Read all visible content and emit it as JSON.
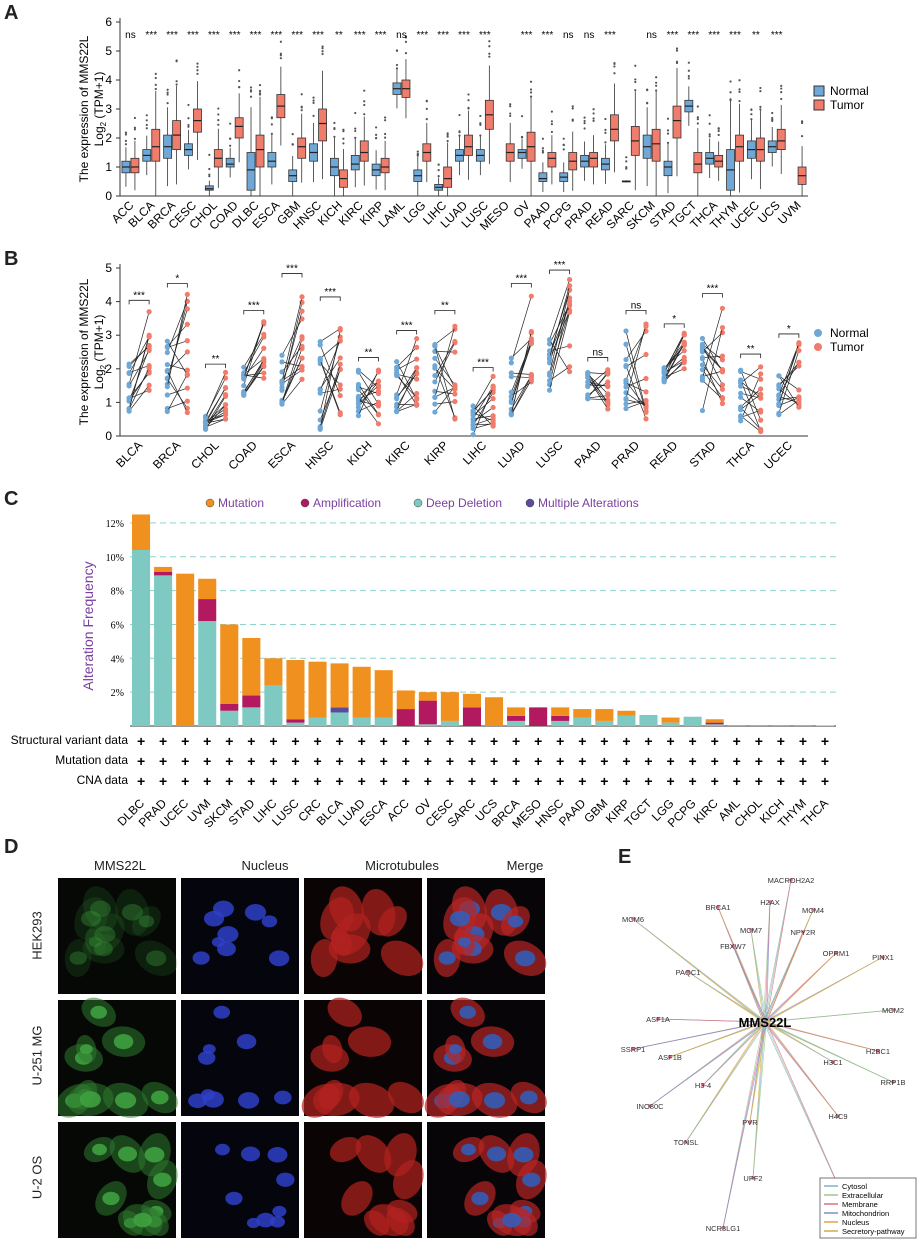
{
  "panels": {
    "a": "A",
    "b": "B",
    "c": "C",
    "d": "D",
    "e": "E"
  },
  "colors": {
    "normal": "#6fa8d6",
    "tumor": "#f07c6c",
    "mutation": "#f0901e",
    "amplification": "#b2195e",
    "deep_deletion": "#7ec9c1",
    "multiple": "#5b4b9b",
    "alt_ylabel": "#7a3fa0",
    "legend_text_c": "#7a3fa0",
    "gridline_c": "#8fd3cc"
  },
  "chart_data": [
    {
      "id": "A",
      "type": "box",
      "ylabel_line1": "The expression of MMS22L",
      "ylabel_line2": "Log",
      "ylabel_sub": "2",
      "ylabel_line3": " (TPM+1)",
      "ylim": [
        0,
        6
      ],
      "yticks": [
        "0",
        "1",
        "2",
        "3",
        "4",
        "5",
        "6"
      ],
      "legend": [
        "Normal",
        "Tumor"
      ],
      "categories": [
        "ACC",
        "BLCA",
        "BRCA",
        "CESC",
        "CHOL",
        "COAD",
        "DLBC",
        "ESCA",
        "GBM",
        "HNSC",
        "KICH",
        "KIRC",
        "KIRP",
        "LAML",
        "LGG",
        "LIHC",
        "LUAD",
        "LUSC",
        "MESO",
        "OV",
        "PAAD",
        "PCPG",
        "PRAD",
        "READ",
        "SARC",
        "SKCM",
        "STAD",
        "TGCT",
        "THCA",
        "THYM",
        "UCEC",
        "UCS",
        "UVM"
      ],
      "significance": [
        "ns",
        "***",
        "***",
        "***",
        "***",
        "***",
        "***",
        "***",
        "***",
        "***",
        "**",
        "***",
        "***",
        "ns",
        "***",
        "***",
        "***",
        "***",
        "",
        "***",
        "***",
        "ns",
        "ns",
        "***",
        "",
        "ns",
        "***",
        "***",
        "***",
        "***",
        "**",
        "***",
        ""
      ],
      "normal": [
        [
          0.8,
          1.0,
          1.2
        ],
        [
          1.2,
          1.4,
          1.6
        ],
        [
          1.3,
          1.7,
          2.1
        ],
        [
          1.4,
          1.6,
          1.8
        ],
        [
          0.2,
          0.25,
          0.35
        ],
        [
          1.0,
          1.1,
          1.3
        ],
        [
          0.2,
          0.9,
          1.5
        ],
        [
          1.0,
          1.2,
          1.5
        ],
        [
          0.5,
          0.7,
          0.9
        ],
        [
          1.2,
          1.5,
          1.8
        ],
        [
          0.7,
          1.0,
          1.3
        ],
        [
          0.9,
          1.1,
          1.4
        ],
        [
          0.7,
          0.9,
          1.1
        ],
        [
          3.5,
          3.7,
          3.9
        ],
        [
          0.5,
          0.7,
          0.9
        ],
        [
          0.2,
          0.3,
          0.4
        ],
        [
          1.2,
          1.4,
          1.6
        ],
        [
          1.2,
          1.4,
          1.6
        ],
        null,
        [
          1.3,
          1.5,
          1.6
        ],
        [
          0.5,
          0.6,
          0.8
        ],
        [
          0.5,
          0.65,
          0.8
        ],
        [
          1.0,
          1.2,
          1.4
        ],
        [
          0.9,
          1.1,
          1.3
        ],
        [
          0.5,
          0.5,
          0.52
        ],
        [
          1.3,
          1.7,
          2.1
        ],
        [
          0.7,
          1.0,
          1.2
        ],
        [
          2.9,
          3.1,
          3.3
        ],
        [
          1.1,
          1.3,
          1.5
        ],
        [
          0.2,
          0.9,
          1.6
        ],
        [
          1.3,
          1.6,
          1.9
        ],
        [
          1.5,
          1.7,
          1.9
        ],
        null
      ],
      "tumor": [
        [
          0.8,
          1.0,
          1.3
        ],
        [
          1.2,
          1.7,
          2.3
        ],
        [
          1.6,
          2.1,
          2.6
        ],
        [
          2.2,
          2.6,
          3.0
        ],
        [
          1.0,
          1.3,
          1.6
        ],
        [
          2.0,
          2.4,
          2.7
        ],
        [
          1.0,
          1.6,
          2.1
        ],
        [
          2.7,
          3.1,
          3.5
        ],
        [
          1.3,
          1.7,
          2.0
        ],
        [
          1.9,
          2.5,
          3.0
        ],
        [
          0.3,
          0.6,
          0.9
        ],
        [
          1.2,
          1.5,
          1.9
        ],
        [
          0.8,
          1.0,
          1.3
        ],
        [
          3.4,
          3.7,
          4.0
        ],
        [
          1.2,
          1.5,
          1.8
        ],
        [
          0.3,
          0.6,
          1.0
        ],
        [
          1.4,
          1.7,
          2.1
        ],
        [
          2.3,
          2.8,
          3.3
        ],
        [
          1.2,
          1.5,
          1.8
        ],
        [
          1.2,
          1.7,
          2.2
        ],
        [
          1.0,
          1.3,
          1.5
        ],
        [
          0.9,
          1.2,
          1.5
        ],
        [
          1.0,
          1.3,
          1.5
        ],
        [
          1.9,
          2.3,
          2.8
        ],
        [
          1.4,
          1.9,
          2.4
        ],
        [
          1.2,
          1.8,
          2.3
        ],
        [
          2.0,
          2.6,
          3.1
        ],
        [
          0.8,
          1.1,
          1.5
        ],
        [
          1.0,
          1.2,
          1.4
        ],
        [
          1.2,
          1.7,
          2.1
        ],
        [
          1.2,
          1.6,
          2.0
        ],
        [
          1.6,
          1.9,
          2.3
        ],
        [
          0.4,
          0.7,
          1.0
        ]
      ]
    },
    {
      "id": "B",
      "type": "paired-scatter",
      "ylabel_line1": "The expression of MMS22L",
      "ylabel_line2": "Log",
      "ylabel_sub": "2",
      "ylabel_line3": " (TPM+1)",
      "ylim": [
        0,
        5
      ],
      "yticks": [
        "0",
        "1",
        "2",
        "3",
        "4",
        "5"
      ],
      "legend": [
        "Normal",
        "Tumor"
      ],
      "categories": [
        "BLCA",
        "BRCA",
        "CHOL",
        "COAD",
        "ESCA",
        "HNSC",
        "KICH",
        "KIRC",
        "KIRP",
        "LIHC",
        "LUAD",
        "LUSC",
        "PAAD",
        "PRAD",
        "READ",
        "STAD",
        "THCA",
        "UCEC"
      ],
      "significance": [
        "***",
        "*",
        "**",
        "***",
        "***",
        "***",
        "**",
        "***",
        "**",
        "***",
        "***",
        "***",
        "ns",
        "ns",
        "*",
        "***",
        "**",
        "*"
      ],
      "normal_range": [
        [
          0.6,
          2.2
        ],
        [
          0.6,
          3.1
        ],
        [
          0.2,
          0.6
        ],
        [
          1.2,
          2.2
        ],
        [
          0.8,
          2.6
        ],
        [
          0.2,
          2.9
        ],
        [
          0.6,
          2.1
        ],
        [
          0.7,
          2.5
        ],
        [
          0.4,
          2.8
        ],
        [
          0,
          0.9
        ],
        [
          0.5,
          2.5
        ],
        [
          1.2,
          2.9
        ],
        [
          1.0,
          2.1
        ],
        [
          0.5,
          3.2
        ],
        [
          1.6,
          2.1
        ],
        [
          0.5,
          3.1
        ],
        [
          0.4,
          2.0
        ],
        [
          0.6,
          1.9
        ]
      ],
      "tumor_range": [
        [
          0.9,
          3.8
        ],
        [
          0.5,
          4.3
        ],
        [
          0.5,
          1.9
        ],
        [
          1.6,
          3.5
        ],
        [
          1.2,
          4.6
        ],
        [
          0.4,
          3.9
        ],
        [
          0.2,
          2.0
        ],
        [
          0.9,
          2.9
        ],
        [
          0.5,
          3.5
        ],
        [
          0.1,
          1.8
        ],
        [
          1.3,
          4.3
        ],
        [
          1.9,
          4.7
        ],
        [
          0.8,
          2.1
        ],
        [
          0.5,
          3.5
        ],
        [
          1.8,
          3.1
        ],
        [
          0.5,
          4.0
        ],
        [
          0.1,
          2.2
        ],
        [
          0.6,
          2.8
        ]
      ]
    },
    {
      "id": "C",
      "type": "bar",
      "ylabel": "Alteration Frequency",
      "ylim": [
        0,
        13
      ],
      "yticks": [
        "2%",
        "4%",
        "6%",
        "8%",
        "10%",
        "12%"
      ],
      "legend": [
        "Mutation",
        "Amplification",
        "Deep Deletion",
        "Multiple Alterations"
      ],
      "row_labels": [
        "Structural variant data",
        "Mutation data",
        "CNA data"
      ],
      "categories": [
        "DLBC",
        "PRAD",
        "UCEC",
        "UVM",
        "SKCM",
        "STAD",
        "LIHC",
        "LUSC",
        "CRC",
        "BLCA",
        "LUAD",
        "ESCA",
        "ACC",
        "OV",
        "CESC",
        "SARC",
        "UCS",
        "BRCA",
        "MESO",
        "HNSC",
        "PAAD",
        "GBM",
        "KIRP",
        "TGCT",
        "LGG",
        "PCPG",
        "KIRC",
        "AML",
        "CHOL",
        "KICH",
        "THYM",
        "THCA"
      ],
      "series": [
        {
          "name": "Deep Deletion",
          "values": [
            10.4,
            8.9,
            0,
            6.2,
            0.9,
            1.1,
            2.4,
            0.2,
            0.5,
            0.8,
            0.5,
            0.5,
            0,
            0.1,
            0.3,
            0,
            0,
            0.3,
            0,
            0.3,
            0.5,
            0.3,
            0.6,
            0.65,
            0.2,
            0.55,
            0.1,
            0,
            0,
            0,
            0,
            0
          ]
        },
        {
          "name": "Multiple Alterations",
          "values": [
            0,
            0,
            0,
            0,
            0,
            0,
            0,
            0,
            0,
            0.3,
            0,
            0,
            0,
            0,
            0,
            0,
            0,
            0,
            0,
            0,
            0,
            0,
            0,
            0,
            0,
            0,
            0,
            0,
            0,
            0,
            0,
            0
          ]
        },
        {
          "name": "Amplification",
          "values": [
            0,
            0.2,
            0,
            1.3,
            0.4,
            0.7,
            0,
            0.2,
            0,
            0,
            0,
            0,
            1.0,
            1.4,
            0,
            1.1,
            0,
            0.3,
            1.1,
            0.3,
            0,
            0,
            0,
            0,
            0,
            0,
            0.1,
            0,
            0,
            0,
            0,
            0
          ]
        },
        {
          "name": "Mutation",
          "values": [
            2.1,
            0.3,
            9.0,
            1.2,
            4.7,
            3.4,
            1.6,
            3.5,
            3.3,
            2.6,
            3.0,
            2.8,
            1.1,
            0.5,
            1.7,
            0.8,
            1.7,
            0.5,
            0,
            0.5,
            0.5,
            0.7,
            0.3,
            0,
            0.3,
            0,
            0.2,
            0.05,
            0.05,
            0.05,
            0.05,
            0.03
          ]
        }
      ]
    }
  ],
  "panel_d": {
    "columns": [
      "MMS22L",
      "Nucleus",
      "Microtubules",
      "Merge"
    ],
    "rows": [
      "HEK293",
      "U-251 MG",
      "U-2 OS"
    ]
  },
  "panel_e": {
    "center": "MMS22L",
    "nodes": [
      "MACROH2A2",
      "H2AX",
      "BRCA1",
      "MCM4",
      "MCM6",
      "MCM7",
      "NPY2R",
      "FBXW7",
      "OPRM1",
      "PINX1",
      "PAQC1",
      "MCM2",
      "ASF1A",
      "SSRP1",
      "H2BC1",
      "ASF1B",
      "H3C1",
      "RRP1B",
      "H3-4",
      "INO80C",
      "H4C9",
      "PVR",
      "TONSL",
      "UPF2",
      "SUPT16H",
      "NCR3LG1"
    ],
    "legend": [
      "Cytosol",
      "Extracellular",
      "Membrane",
      "Mitochondrion",
      "Nucleus",
      "Secretory-pathway"
    ],
    "legend_colors": [
      "#7fb3c8",
      "#9bc98e",
      "#e06a8a",
      "#7a8fd0",
      "#e5a24a",
      "#c9b04a"
    ]
  }
}
